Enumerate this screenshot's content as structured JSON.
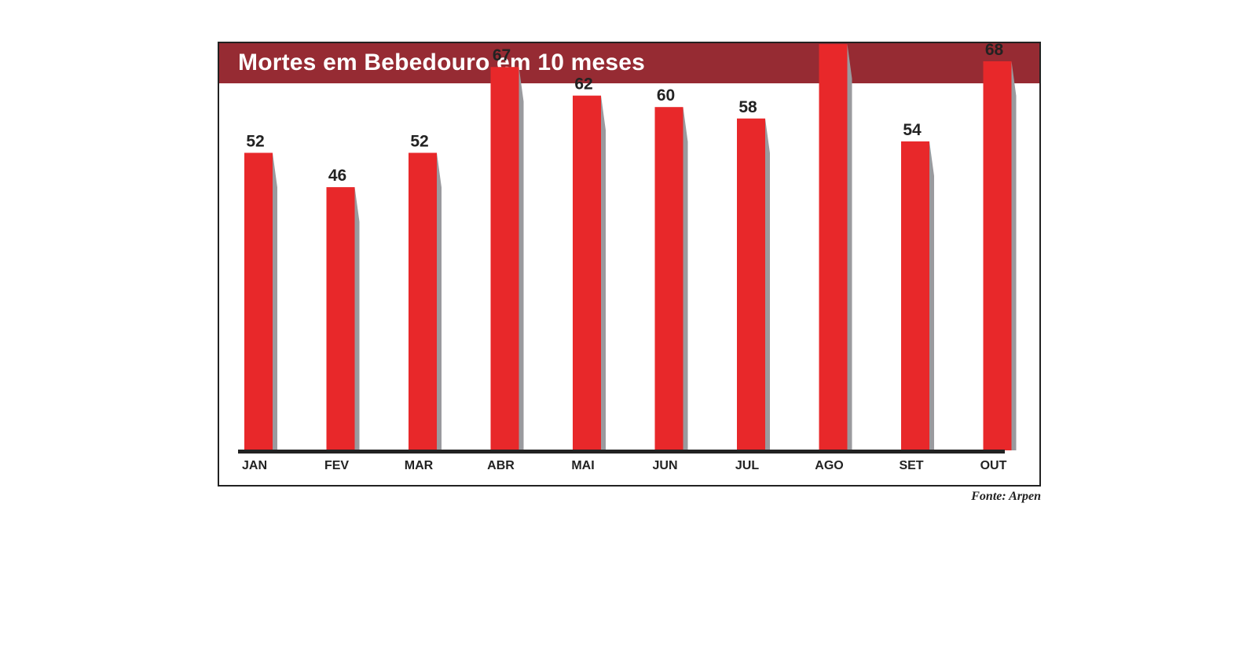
{
  "chart_data": {
    "type": "bar",
    "title": "Mortes em Bebedouro em 10 meses",
    "categories": [
      "JAN",
      "FEV",
      "MAR",
      "ABR",
      "MAI",
      "JUN",
      "JUL",
      "AGO",
      "SET",
      "OUT"
    ],
    "values": [
      52,
      46,
      52,
      67,
      62,
      60,
      58,
      71,
      54,
      68
    ],
    "xlabel": "",
    "ylabel": "",
    "grid": false,
    "legend": "none"
  },
  "source": "Fonte: Arpen",
  "colors": {
    "title_bar": "#962b33",
    "bar": "#e8282a",
    "bar_shadow": "#9a9a9e",
    "baseline": "#222222",
    "text": "#222222"
  }
}
